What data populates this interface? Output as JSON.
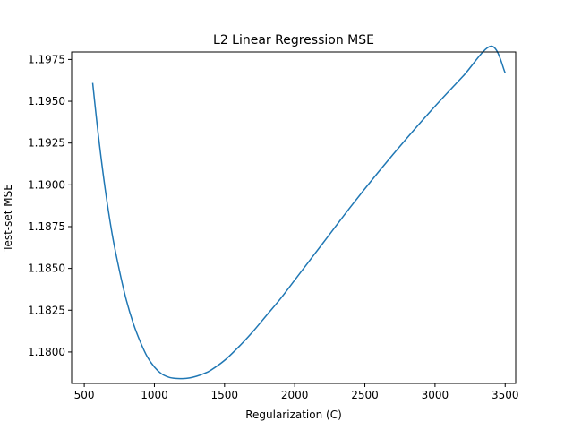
{
  "chart_data": {
    "type": "line",
    "title": "L2 Linear Regression MSE",
    "xlabel": "Regularization (C)",
    "ylabel": "Test-set MSE",
    "xlim": [
      410,
      3575
    ],
    "ylim": [
      1.17812,
      1.19795
    ],
    "xticks": [
      500,
      1000,
      1500,
      2000,
      2500,
      3000,
      3500
    ],
    "xtick_labels": [
      "500",
      "1000",
      "1500",
      "2000",
      "2500",
      "3000",
      "3500"
    ],
    "yticks": [
      1.18,
      1.1825,
      1.185,
      1.1875,
      1.19,
      1.1925,
      1.195,
      1.1975
    ],
    "ytick_labels": [
      "1.1800",
      "1.1825",
      "1.1850",
      "1.1875",
      "1.1900",
      "1.1925",
      "1.1950",
      "1.1975"
    ],
    "grid": false,
    "line_color": "#1f77b4",
    "series": [
      {
        "x": [
          560,
          600,
          650,
          700,
          750,
          800,
          850,
          900,
          950,
          1000,
          1050,
          1100,
          1150,
          1200,
          1250,
          1300,
          1350,
          1400,
          1500,
          1600,
          1700,
          1800,
          1900,
          2000,
          2200,
          2400,
          2600,
          2800,
          3000,
          3200,
          3400,
          3500
        ],
        "y": [
          1.1961,
          1.193,
          1.1897,
          1.187,
          1.1849,
          1.1831,
          1.1817,
          1.1806,
          1.1797,
          1.1791,
          1.1787,
          1.1785,
          1.17842,
          1.17841,
          1.17845,
          1.17855,
          1.1787,
          1.1789,
          1.1795,
          1.1803,
          1.1812,
          1.1822,
          1.1832,
          1.1843,
          1.1865,
          1.1887,
          1.1908,
          1.1928,
          1.1947,
          1.1965,
          1.1983,
          1.1967
        ]
      }
    ]
  }
}
